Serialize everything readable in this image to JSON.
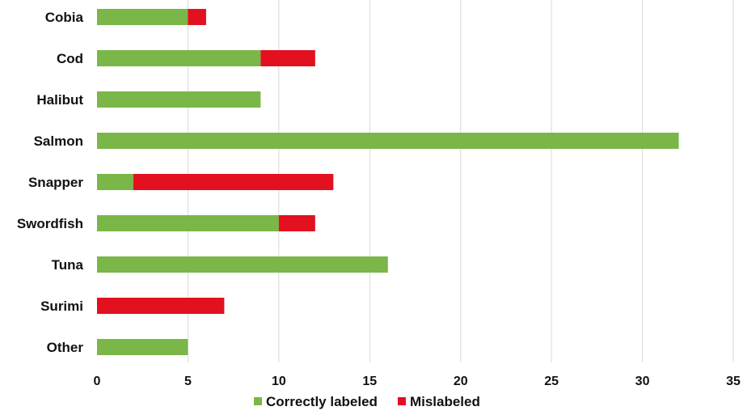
{
  "chart_data": {
    "type": "bar",
    "orientation": "horizontal",
    "stacked": true,
    "categories": [
      "Cobia",
      "Cod",
      "Halibut",
      "Salmon",
      "Snapper",
      "Swordfish",
      "Tuna",
      "Surimi",
      "Other"
    ],
    "series": [
      {
        "name": "Correctly labeled",
        "color": "#7ab648",
        "values": [
          5,
          9,
          9,
          32,
          2,
          10,
          16,
          0,
          5
        ]
      },
      {
        "name": "Mislabeled",
        "color": "#e3101f",
        "values": [
          1,
          3,
          0,
          0,
          11,
          2,
          0,
          7,
          0
        ]
      }
    ],
    "xlim": [
      0,
      35
    ],
    "xticks": [
      0,
      5,
      10,
      15,
      20,
      25,
      30,
      35
    ],
    "xlabel": "",
    "ylabel": "",
    "title": "",
    "grid": "vertical",
    "legend_position": "bottom"
  }
}
